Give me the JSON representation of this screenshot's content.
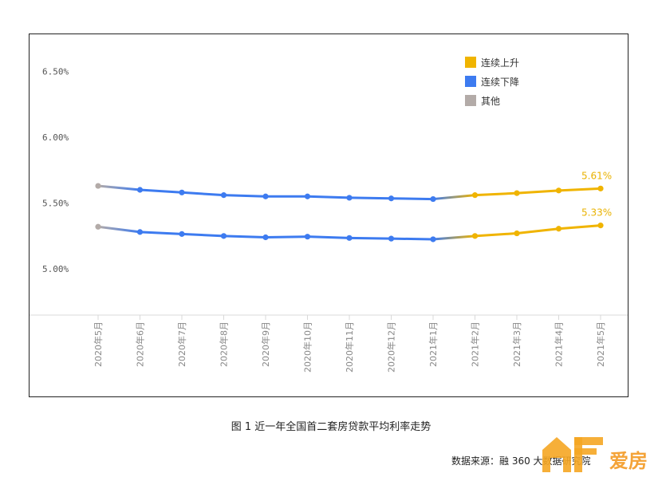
{
  "chart_data": {
    "type": "line",
    "categories": [
      "2020年5月",
      "2020年6月",
      "2020年7月",
      "2020年8月",
      "2020年9月",
      "2020年10月",
      "2020年11月",
      "2020年12月",
      "2021年1月",
      "2021年2月",
      "2021年3月",
      "2021年4月",
      "2021年5月"
    ],
    "series": [
      {
        "values": [
          5.63,
          5.6,
          5.58,
          5.56,
          5.55,
          5.55,
          5.54,
          5.535,
          5.53,
          5.56,
          5.575,
          5.595,
          5.61
        ]
      },
      {
        "values": [
          5.32,
          5.28,
          5.265,
          5.25,
          5.24,
          5.245,
          5.235,
          5.23,
          5.225,
          5.25,
          5.27,
          5.305,
          5.33
        ]
      }
    ],
    "segment_trend": [
      "其他",
      "连续下降",
      "连续下降",
      "连续下降",
      "连续下降",
      "连续下降",
      "连续下降",
      "连续下降",
      "连续下降",
      "连续上升",
      "连续上升",
      "连续上升",
      "连续上升"
    ],
    "y_ticks": [
      "6.50%",
      "6.00%",
      "5.50%",
      "5.00%"
    ],
    "y_tick_values": [
      6.5,
      6.0,
      5.5,
      5.0
    ],
    "ylim": [
      4.65,
      6.55
    ],
    "legend": [
      {
        "label": "连续上升",
        "color": "#f0b400"
      },
      {
        "label": "连续下降",
        "color": "#3d7bf0"
      },
      {
        "label": "其他",
        "color": "#b3aba8"
      }
    ],
    "legend_position": "top-right",
    "end_labels": [
      "5.61%",
      "5.33%"
    ],
    "grid": false
  },
  "caption": "图 1  近一年全国首二套房贷款平均利率走势",
  "source": "数据来源：融 360 大数据研究院",
  "watermark_text": "爱房",
  "colors": {
    "up": "#f0b400",
    "down": "#3d7bf0",
    "other": "#b3aba8",
    "label": "#e9b200"
  }
}
